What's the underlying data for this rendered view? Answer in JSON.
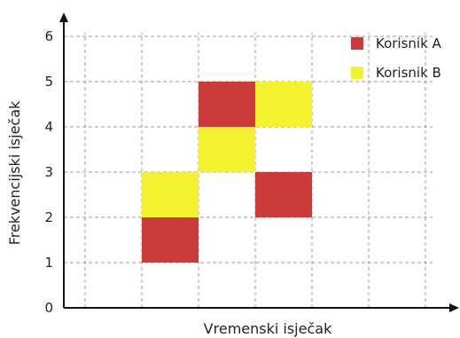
{
  "chart_data": {
    "type": "heatmap",
    "title": "",
    "xlabel": "Vremenski isječak",
    "ylabel": "Frekvencijski isječak",
    "xlim": [
      0,
      6
    ],
    "ylim": [
      0,
      6
    ],
    "y_ticks": [
      "0",
      "1",
      "2",
      "3",
      "4",
      "5",
      "6"
    ],
    "grid": true,
    "legend_position": "top-right",
    "series": [
      {
        "name": "Korisnik A",
        "color": "#cc3a3a",
        "cells": [
          {
            "x": [
              1,
              2
            ],
            "y": [
              1,
              2
            ]
          },
          {
            "x": [
              2,
              3
            ],
            "y": [
              4,
              5
            ]
          },
          {
            "x": [
              3,
              4
            ],
            "y": [
              2,
              3
            ]
          }
        ]
      },
      {
        "name": "Korisnik B",
        "color": "#f2f22e",
        "cells": [
          {
            "x": [
              1,
              2
            ],
            "y": [
              2,
              3
            ]
          },
          {
            "x": [
              2,
              3
            ],
            "y": [
              3,
              4
            ]
          },
          {
            "x": [
              3,
              4
            ],
            "y": [
              4,
              5
            ]
          }
        ]
      }
    ]
  }
}
